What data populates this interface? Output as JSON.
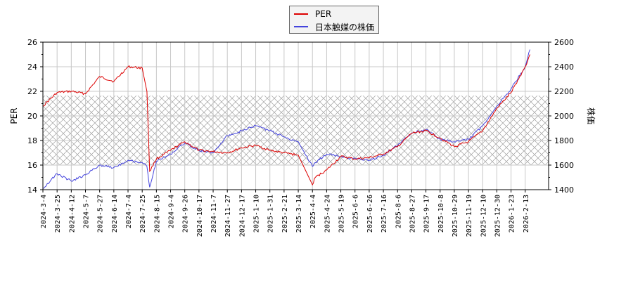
{
  "legend": {
    "items": [
      {
        "label": "PER",
        "color": "#dd0000"
      },
      {
        "label": "日本触媒の株価",
        "color": "#4444dd"
      }
    ]
  },
  "axes": {
    "left_title": "PER",
    "right_title": "株価",
    "left_ticks": [
      "26",
      "24",
      "22",
      "20",
      "18",
      "16",
      "14"
    ],
    "right_ticks": [
      "2600",
      "2400",
      "2200",
      "2000",
      "1800",
      "1600",
      "1400"
    ]
  },
  "chart_data": {
    "type": "line",
    "title": "",
    "xlabel": "",
    "ylabel": "PER",
    "y2label": "株価",
    "ylim": [
      14,
      26
    ],
    "y2lim": [
      1400,
      2600
    ],
    "grid": true,
    "legend_position": "top-center",
    "shaded_band": {
      "axis": "left",
      "from": 16.0,
      "to": 21.65,
      "style": "crosshatch"
    },
    "x_tick_labels": [
      "2024-3-4",
      "2024-3-25",
      "2024-4-12",
      "2024-5-7",
      "2024-5-27",
      "2024-6-14",
      "2024-7-4",
      "2024-7-25",
      "2024-8-15",
      "2024-9-4",
      "2024-9-26",
      "2024-10-17",
      "2024-11-7",
      "2024-11-27",
      "2024-12-17",
      "2025-1-10",
      "2025-1-31",
      "2025-2-21",
      "2025-3-14",
      "2025-4-4",
      "2025-4-24",
      "2025-5-19",
      "2025-6-6",
      "2025-6-26",
      "2025-7-16",
      "2025-8-6",
      "2025-8-27",
      "2025-9-17",
      "2025-10-8",
      "2025-10-29",
      "2025-11-19",
      "2025-12-10",
      "2025-12-30",
      "2026-1-23",
      "2026-2-13"
    ],
    "x": [
      "2024-3-4",
      "2024-3-25",
      "2024-4-12",
      "2024-5-7",
      "2024-5-27",
      "2024-6-14",
      "2024-7-4",
      "2024-7-25",
      "2024-8-1",
      "2024-8-5",
      "2024-8-15",
      "2024-9-4",
      "2024-9-26",
      "2024-10-17",
      "2024-11-7",
      "2024-11-27",
      "2024-12-17",
      "2025-1-10",
      "2025-1-31",
      "2025-2-21",
      "2025-3-14",
      "2025-4-4",
      "2025-4-8",
      "2025-4-24",
      "2025-5-19",
      "2025-6-6",
      "2025-6-26",
      "2025-7-16",
      "2025-8-6",
      "2025-8-27",
      "2025-9-17",
      "2025-10-8",
      "2025-10-29",
      "2025-11-19",
      "2025-12-10",
      "2025-12-30",
      "2026-1-23",
      "2026-2-13",
      "2026-2-20"
    ],
    "series": [
      {
        "name": "PER",
        "axis": "left",
        "color": "#dd0000",
        "values": [
          20.8,
          21.9,
          22.0,
          21.8,
          23.2,
          22.8,
          24.0,
          23.9,
          22.0,
          15.5,
          16.5,
          17.2,
          17.9,
          17.2,
          17.1,
          17.0,
          17.4,
          17.6,
          17.2,
          17.0,
          16.8,
          14.4,
          15.0,
          15.6,
          16.7,
          16.5,
          16.6,
          16.9,
          17.5,
          18.6,
          18.8,
          18.2,
          17.5,
          17.9,
          18.8,
          20.6,
          21.9,
          24.0,
          25.0
        ]
      },
      {
        "name": "日本触媒の株価",
        "axis": "right",
        "color": "#4444dd",
        "values": [
          1410,
          1530,
          1470,
          1520,
          1600,
          1580,
          1640,
          1620,
          1590,
          1420,
          1630,
          1690,
          1780,
          1720,
          1700,
          1840,
          1880,
          1920,
          1880,
          1830,
          1790,
          1590,
          1620,
          1690,
          1670,
          1650,
          1640,
          1680,
          1760,
          1860,
          1890,
          1810,
          1790,
          1810,
          1920,
          2080,
          2220,
          2400,
          2540
        ]
      }
    ]
  }
}
